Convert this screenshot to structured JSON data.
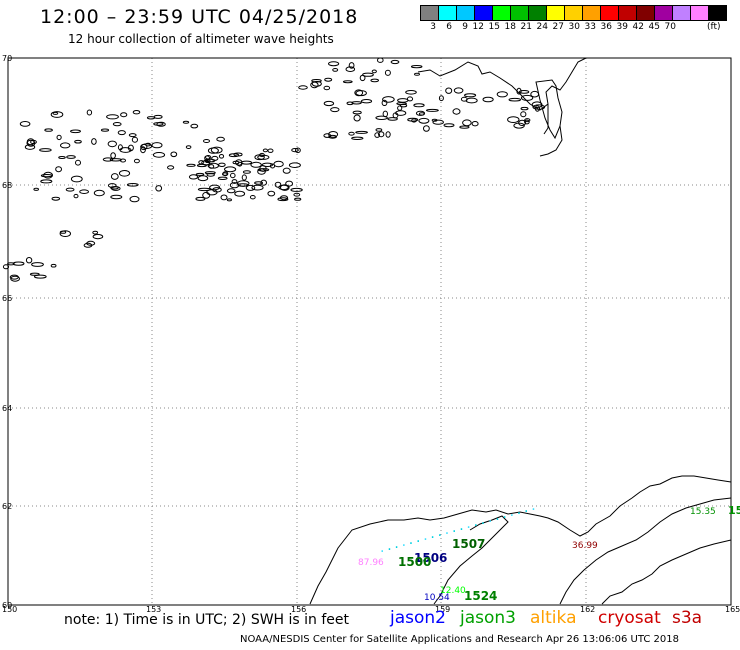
{
  "header": {
    "title": "12:00 – 23:59 UTC 04/25/2018",
    "subtitle": "12 hour collection of altimeter wave heights"
  },
  "color_scale": {
    "colors": [
      "#808080",
      "#00ffff",
      "#00c8ff",
      "#0000ff",
      "#00ff00",
      "#00c000",
      "#008000",
      "#ffff00",
      "#ffd000",
      "#ffa000",
      "#ff0000",
      "#c00000",
      "#800000",
      "#a000a0",
      "#c080ff",
      "#ff80ff",
      "#000000"
    ],
    "labels": [
      "3",
      "6",
      "9",
      "12",
      "15",
      "18",
      "21",
      "24",
      "27",
      "30",
      "33",
      "36",
      "39",
      "42",
      "45",
      "70"
    ],
    "unit": "(ft)"
  },
  "axes": {
    "lat_labels": [
      "70",
      "68",
      "66",
      "64",
      "62",
      "60"
    ],
    "lon_labels": [
      "150",
      "153",
      "156",
      "159",
      "162",
      "165"
    ]
  },
  "passes": [
    {
      "text": "1507",
      "color": "#006000"
    },
    {
      "text": "1506",
      "color": "#000080"
    },
    {
      "text": "1500",
      "color": "#007000"
    },
    {
      "text": "1524",
      "color": "#008000"
    },
    {
      "text": "10.54",
      "color": "#0000c0"
    },
    {
      "text": "36.99",
      "color": "#900000"
    },
    {
      "text": "15.35",
      "color": "#009000"
    },
    {
      "text": "15",
      "color": "#009000"
    },
    {
      "text": "87.96",
      "color": "#ff80ff"
    },
    {
      "text": "12.40",
      "color": "#00ff00"
    }
  ],
  "note": "note: 1) Time is in UTC; 2) SWH is in feet",
  "satellites": [
    {
      "name": "jason2",
      "color": "#0000ff"
    },
    {
      "name": "jason3",
      "color": "#00a000"
    },
    {
      "name": "altika",
      "color": "#ffa000"
    },
    {
      "name": "cryosat",
      "color": "#d00000"
    },
    {
      "name": "s3a",
      "color": "#c00000"
    }
  ],
  "footer": "NOAA/NESDIS Center for Satellite Applications and Research    Apr 26 13:06:06 UTC 2018"
}
